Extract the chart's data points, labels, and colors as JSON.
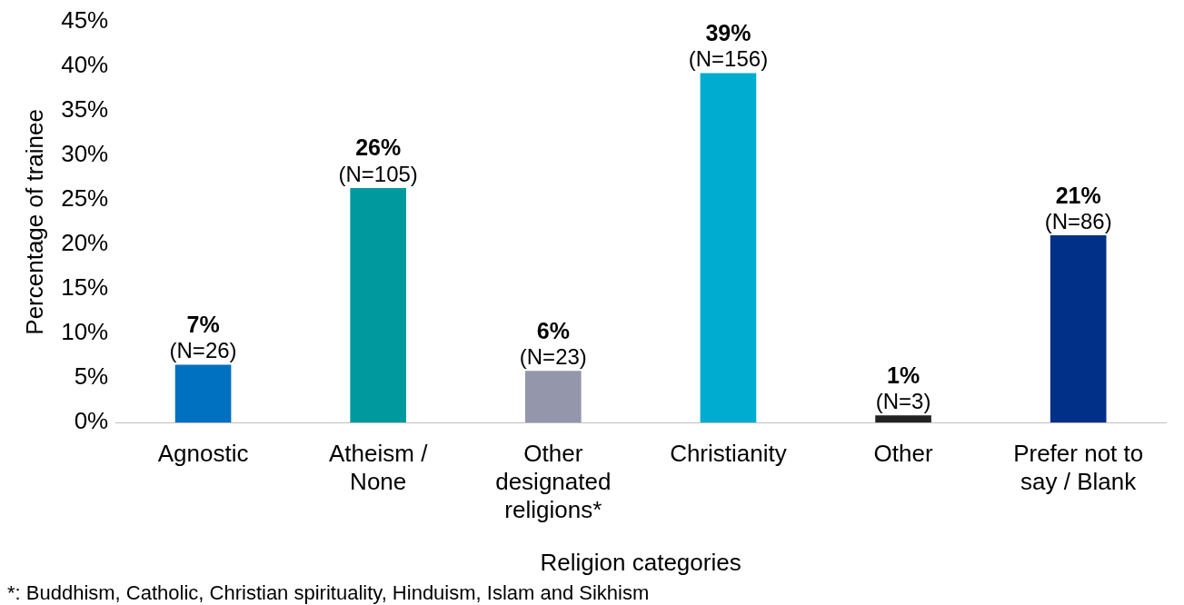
{
  "chart_data": {
    "type": "bar",
    "categories": [
      "Agnostic",
      "Atheism / None",
      "Other designated religions*",
      "Christianity",
      "Other",
      "Prefer not to say / Blank"
    ],
    "values": [
      6.5,
      26.3,
      5.8,
      39.2,
      0.8,
      21.0
    ],
    "colors": [
      "#0070c0",
      "#009a9e",
      "#9496ab",
      "#00acd0",
      "#222222",
      "#003087"
    ],
    "value_labels": [
      "7%\n(N=26)",
      "26%\n(N=105)",
      "6%\n(N=23)",
      "39%\n(N=156)",
      "1%\n(N=3)",
      "21%\n(N=86)"
    ],
    "ylim": [
      0,
      45
    ],
    "yticks": [
      {
        "value": 0,
        "label": "0%"
      },
      {
        "value": 5,
        "label": "5%"
      },
      {
        "value": 10,
        "label": "10%"
      },
      {
        "value": 15,
        "label": "15%"
      },
      {
        "value": 20,
        "label": "20%"
      },
      {
        "value": 25,
        "label": "25%"
      },
      {
        "value": 30,
        "label": "30%"
      },
      {
        "value": 35,
        "label": "35%"
      },
      {
        "value": 40,
        "label": "40%"
      },
      {
        "value": 45,
        "label": "45%"
      }
    ],
    "xlabel": "Religion categories",
    "ylabel": "Percentage of trainee",
    "annotations": [
      "*: Buddhism, Catholic, Christian spirituality, Hinduism, Islam and Sikhism"
    ],
    "grid": false,
    "legend": false
  }
}
